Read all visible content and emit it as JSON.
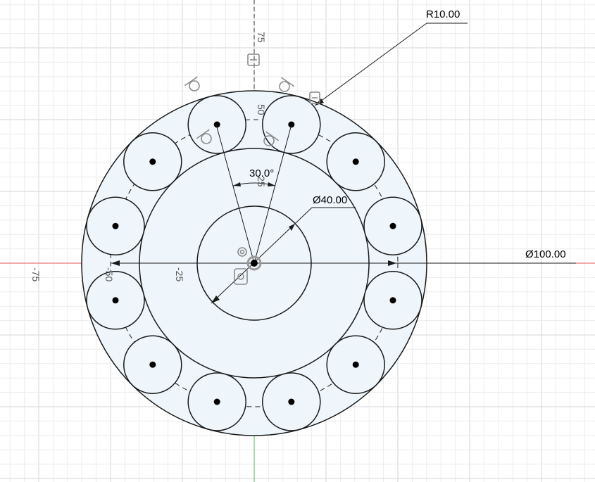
{
  "dimensions": {
    "radius": "R10.00",
    "outer_diameter": "Ø100.00",
    "inner_diameter": "Ø40.00",
    "angle": "30.0°"
  },
  "axis_ticks": {
    "y_75": "75",
    "y_50": "50",
    "y_25": "25",
    "x_neg25": "-25",
    "x_neg50": "-50",
    "x_neg75": "-75"
  },
  "colors": {
    "background": "#ffffff",
    "grid_minor": "#ececec",
    "grid_major": "#d6d6d6",
    "x_axis": "#e45757",
    "y_axis": "#4fc04f",
    "profile_fill": "#eef6fb",
    "sketch_line": "#1a1a1a"
  },
  "icons": [
    "tangent-constraint-icon",
    "coincident-constraint-icon",
    "midpoint-constraint-icon",
    "fix-constraint-icon",
    "sketch-origin-icon"
  ]
}
